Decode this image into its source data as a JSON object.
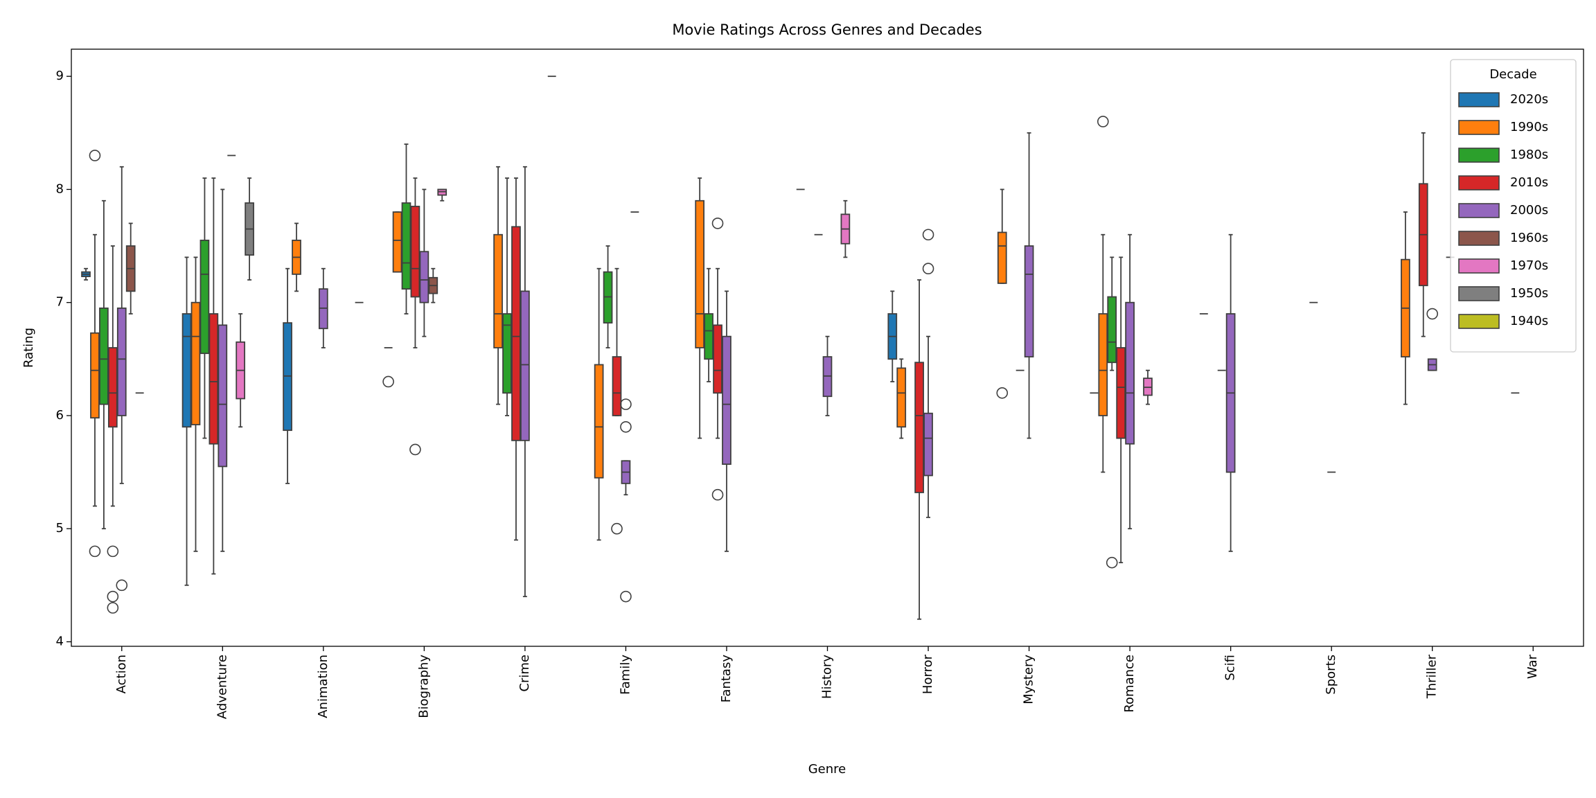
{
  "chart_data": {
    "type": "box",
    "title": "Movie Ratings Across Genres and Decades",
    "x_label": "Genre",
    "y_label": "Rating",
    "legend_title": "Decade",
    "legend_loc": "upper right",
    "ylim": [
      3.96,
      9.24
    ],
    "yticks": [
      4,
      5,
      6,
      7,
      8,
      9
    ],
    "categories": [
      "Action",
      "Adventure",
      "Animation",
      "Biography",
      "Crime",
      "Family",
      "Fantasy",
      "History",
      "Horror",
      "Mystery",
      "Romance",
      "Scifi",
      "Sports",
      "Thriller",
      "War"
    ],
    "series": [
      {
        "name": "2020s",
        "color": "#1f77b4",
        "boxes": [
          {
            "low": 7.2,
            "q1": 7.23,
            "median": 7.25,
            "q3": 7.27,
            "high": 7.3
          },
          {
            "low": 4.5,
            "q1": 5.9,
            "median": 6.7,
            "q3": 6.9,
            "high": 7.4
          },
          {
            "low": 5.4,
            "q1": 5.87,
            "median": 6.35,
            "q3": 6.82,
            "high": 7.3
          },
          {
            "median": 6.6,
            "outliers": [
              6.3
            ]
          },
          null,
          null,
          null,
          null,
          {
            "low": 6.3,
            "q1": 6.5,
            "median": 6.7,
            "q3": 6.9,
            "high": 7.1
          },
          null,
          {
            "median": 6.2
          },
          null,
          null,
          null,
          null
        ]
      },
      {
        "name": "1990s",
        "color": "#ff7f0e",
        "boxes": [
          {
            "low": 5.2,
            "q1": 5.98,
            "median": 6.4,
            "q3": 6.73,
            "high": 7.6,
            "outliers": [
              8.3,
              4.8
            ]
          },
          {
            "low": 4.8,
            "q1": 5.92,
            "median": 6.7,
            "q3": 7.0,
            "high": 7.4
          },
          {
            "low": 7.1,
            "q1": 7.25,
            "median": 7.4,
            "q3": 7.55,
            "high": 7.7
          },
          {
            "low": 7.27,
            "q1": 7.27,
            "median": 7.55,
            "q3": 7.8,
            "high": 7.8
          },
          {
            "low": 6.1,
            "q1": 6.6,
            "median": 6.9,
            "q3": 7.6,
            "high": 8.2
          },
          {
            "low": 4.9,
            "q1": 5.45,
            "median": 5.9,
            "q3": 6.45,
            "high": 7.3
          },
          {
            "low": 5.8,
            "q1": 6.6,
            "median": 6.9,
            "q3": 7.9,
            "high": 8.1
          },
          {
            "median": 8.0
          },
          {
            "low": 5.8,
            "q1": 5.9,
            "median": 6.2,
            "q3": 6.42,
            "high": 6.5
          },
          {
            "low": 7.17,
            "q1": 7.17,
            "median": 7.5,
            "q3": 7.62,
            "high": 8.0,
            "outliers": [
              6.2
            ]
          },
          {
            "low": 5.5,
            "q1": 6.0,
            "median": 6.4,
            "q3": 6.9,
            "high": 7.6,
            "outliers": [
              8.6
            ]
          },
          {
            "median": 6.9
          },
          null,
          {
            "low": 6.1,
            "q1": 6.52,
            "median": 6.95,
            "q3": 7.38,
            "high": 7.8
          },
          null
        ]
      },
      {
        "name": "1980s",
        "color": "#2ca02c",
        "boxes": [
          {
            "low": 5.0,
            "q1": 6.1,
            "median": 6.5,
            "q3": 6.95,
            "high": 7.9
          },
          {
            "low": 5.8,
            "q1": 6.55,
            "median": 7.25,
            "q3": 7.55,
            "high": 8.1
          },
          null,
          {
            "low": 6.9,
            "q1": 7.12,
            "median": 7.35,
            "q3": 7.88,
            "high": 8.4
          },
          {
            "low": 6.0,
            "q1": 6.2,
            "median": 6.8,
            "q3": 6.9,
            "high": 8.1
          },
          {
            "low": 6.6,
            "q1": 6.82,
            "median": 7.05,
            "q3": 7.27,
            "high": 7.5
          },
          {
            "low": 6.3,
            "q1": 6.5,
            "median": 6.75,
            "q3": 6.9,
            "high": 7.3
          },
          null,
          null,
          null,
          {
            "low": 6.4,
            "q1": 6.47,
            "median": 6.65,
            "q3": 7.05,
            "high": 7.4,
            "outliers": [
              4.7
            ]
          },
          null,
          {
            "median": 7.0
          },
          null,
          {
            "median": 6.2
          }
        ]
      },
      {
        "name": "2010s",
        "color": "#d62728",
        "boxes": [
          {
            "low": 5.2,
            "q1": 5.9,
            "median": 6.2,
            "q3": 6.6,
            "high": 7.5,
            "outliers": [
              4.8,
              4.4,
              4.3
            ]
          },
          {
            "low": 4.6,
            "q1": 5.75,
            "median": 6.3,
            "q3": 6.9,
            "high": 8.1
          },
          null,
          {
            "low": 6.6,
            "q1": 7.05,
            "median": 7.3,
            "q3": 7.85,
            "high": 8.1,
            "outliers": [
              5.7
            ]
          },
          {
            "low": 4.9,
            "q1": 5.78,
            "median": 6.7,
            "q3": 7.67,
            "high": 8.1
          },
          {
            "low": 6.0,
            "q1": 6.0,
            "median": 6.2,
            "q3": 6.52,
            "high": 7.3,
            "outliers": [
              5.0
            ]
          },
          {
            "low": 5.8,
            "q1": 6.2,
            "median": 6.4,
            "q3": 6.8,
            "high": 7.3,
            "outliers": [
              7.7,
              5.3
            ]
          },
          {
            "median": 7.6
          },
          {
            "low": 4.2,
            "q1": 5.32,
            "median": 6.0,
            "q3": 6.47,
            "high": 7.2
          },
          {
            "median": 6.4
          },
          {
            "low": 4.7,
            "q1": 5.8,
            "median": 6.25,
            "q3": 6.6,
            "high": 7.4
          },
          {
            "median": 6.4
          },
          null,
          {
            "low": 6.7,
            "q1": 7.15,
            "median": 7.6,
            "q3": 8.05,
            "high": 8.5
          },
          null
        ]
      },
      {
        "name": "2000s",
        "color": "#9467bd",
        "boxes": [
          {
            "low": 5.4,
            "q1": 6.0,
            "median": 6.5,
            "q3": 6.95,
            "high": 8.2,
            "outliers": [
              4.5
            ]
          },
          {
            "low": 4.8,
            "q1": 5.55,
            "median": 6.1,
            "q3": 6.8,
            "high": 8.0
          },
          {
            "low": 6.6,
            "q1": 6.77,
            "median": 6.95,
            "q3": 7.12,
            "high": 7.3
          },
          {
            "low": 6.7,
            "q1": 7.0,
            "median": 7.2,
            "q3": 7.45,
            "high": 8.0
          },
          {
            "low": 4.4,
            "q1": 5.78,
            "median": 6.45,
            "q3": 7.1,
            "high": 8.2
          },
          {
            "low": 5.3,
            "q1": 5.4,
            "median": 5.5,
            "q3": 5.6,
            "high": 5.6,
            "outliers": [
              6.1,
              5.9,
              4.4
            ]
          },
          {
            "low": 4.8,
            "q1": 5.57,
            "median": 6.1,
            "q3": 6.7,
            "high": 7.1
          },
          {
            "low": 6.0,
            "q1": 6.17,
            "median": 6.35,
            "q3": 6.52,
            "high": 6.7
          },
          {
            "low": 5.1,
            "q1": 5.47,
            "median": 5.8,
            "q3": 6.02,
            "high": 6.7,
            "outliers": [
              7.6,
              7.3
            ]
          },
          {
            "low": 5.8,
            "q1": 6.52,
            "median": 7.25,
            "q3": 7.5,
            "high": 8.5
          },
          {
            "low": 5.0,
            "q1": 5.75,
            "median": 6.2,
            "q3": 7.0,
            "high": 7.6
          },
          {
            "low": 4.8,
            "q1": 5.5,
            "median": 6.2,
            "q3": 6.9,
            "high": 7.6
          },
          {
            "median": 5.5
          },
          {
            "low": 6.4,
            "q1": 6.4,
            "median": 6.45,
            "q3": 6.5,
            "high": 6.5,
            "outliers": [
              6.9
            ]
          },
          null
        ]
      },
      {
        "name": "1960s",
        "color": "#8c564b",
        "boxes": [
          {
            "low": 6.9,
            "q1": 7.1,
            "median": 7.3,
            "q3": 7.5,
            "high": 7.7
          },
          {
            "median": 8.3
          },
          null,
          {
            "low": 7.0,
            "q1": 7.08,
            "median": 7.15,
            "q3": 7.22,
            "high": 7.3
          },
          null,
          {
            "median": 7.8
          },
          null,
          null,
          null,
          null,
          null,
          null,
          null,
          null,
          null
        ]
      },
      {
        "name": "1970s",
        "color": "#e377c2",
        "boxes": [
          {
            "median": 6.2
          },
          {
            "low": 5.9,
            "q1": 6.15,
            "median": 6.4,
            "q3": 6.65,
            "high": 6.9
          },
          null,
          {
            "low": 7.9,
            "q1": 7.95,
            "median": 7.98,
            "q3": 8.0,
            "high": 8.0
          },
          null,
          null,
          null,
          {
            "low": 7.4,
            "q1": 7.52,
            "median": 7.65,
            "q3": 7.78,
            "high": 7.9
          },
          null,
          null,
          {
            "low": 6.1,
            "q1": 6.18,
            "median": 6.25,
            "q3": 6.33,
            "high": 6.4
          },
          null,
          null,
          {
            "median": 7.4
          },
          null
        ]
      },
      {
        "name": "1950s",
        "color": "#7f7f7f",
        "boxes": [
          null,
          {
            "low": 7.2,
            "q1": 7.42,
            "median": 7.65,
            "q3": 7.88,
            "high": 8.1
          },
          null,
          null,
          {
            "median": 9.0
          },
          null,
          null,
          null,
          null,
          null,
          null,
          null,
          null,
          null,
          null
        ]
      },
      {
        "name": "1940s",
        "color": "#bcbd22",
        "boxes": [
          null,
          null,
          {
            "median": 7.0
          },
          null,
          null,
          null,
          null,
          null,
          null,
          null,
          null,
          null,
          null,
          null,
          null
        ]
      }
    ]
  }
}
